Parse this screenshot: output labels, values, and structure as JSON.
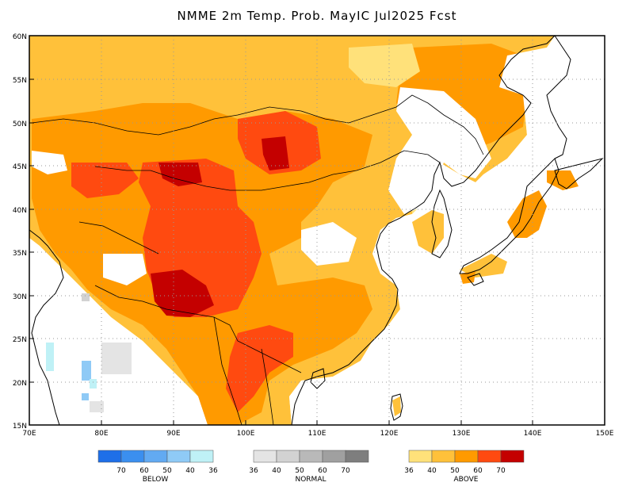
{
  "title": "NMME 2m Temp. Prob. MayIC  Jul2025 Fcst",
  "axes": {
    "lon_labels": [
      "70E",
      "80E",
      "90E",
      "100E",
      "110E",
      "120E",
      "130E",
      "140E",
      "150E"
    ],
    "lat_labels": [
      "60N",
      "55N",
      "50N",
      "45N",
      "40N",
      "35N",
      "30N",
      "25N",
      "20N",
      "15N"
    ]
  },
  "legend": {
    "below": {
      "title": "BELOW",
      "ticks": [
        "70",
        "60",
        "50",
        "40",
        "36"
      ],
      "colors": [
        "#1e6fe8",
        "#3b8fef",
        "#62aaf2",
        "#8fcaf6",
        "#bff1f6"
      ]
    },
    "normal": {
      "title": "NORMAL",
      "ticks": [
        "36",
        "40",
        "50",
        "60",
        "70"
      ],
      "colors": [
        "#e4e4e4",
        "#d2d2d2",
        "#b9b9b9",
        "#a0a0a0",
        "#7e7e7e"
      ]
    },
    "above": {
      "title": "ABOVE",
      "ticks": [
        "36",
        "40",
        "50",
        "60",
        "70"
      ],
      "colors": [
        "#ffe17a",
        "#ffc13a",
        "#ff9a00",
        "#ff4a10",
        "#c40000"
      ]
    }
  },
  "map_data": {
    "category_colors": {
      "A1": "#ffe17a",
      "A2": "#ffc13a",
      "A3": "#ff9a00",
      "A4": "#ff4a10",
      "A5": "#c40000",
      "B1": "#bff1f6",
      "B2": "#8fcaf6",
      "N1": "#e4e4e4",
      "N2": "#d2d2d2"
    }
  }
}
